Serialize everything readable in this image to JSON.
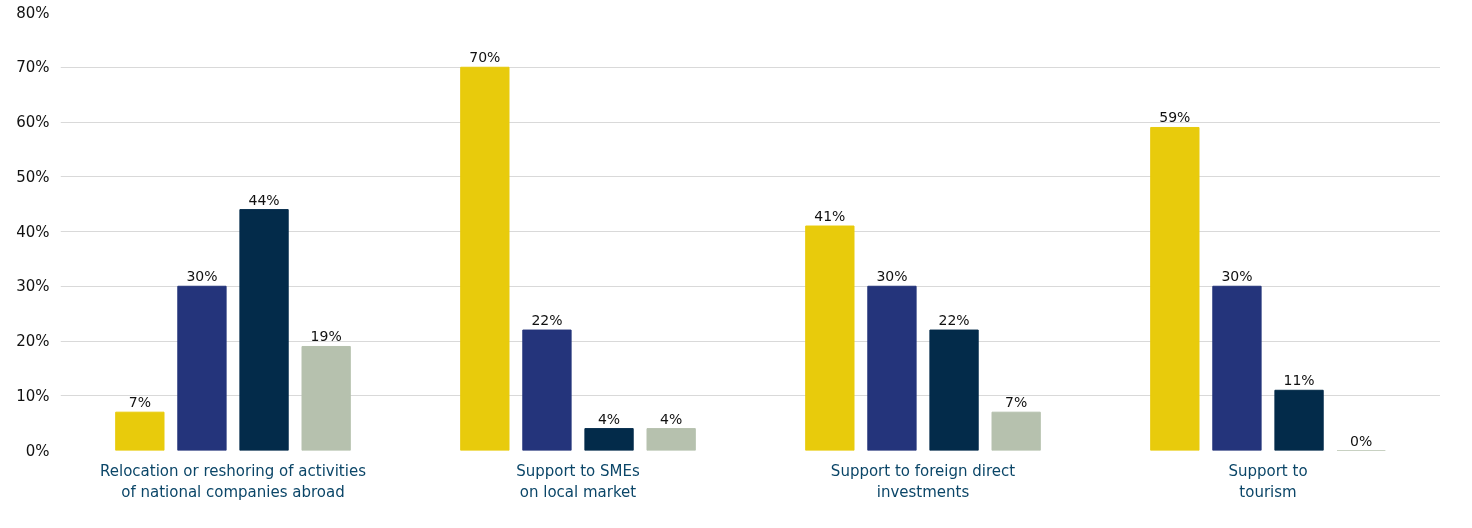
{
  "chart_data": {
    "type": "bar",
    "categories": [
      "Relocation or reshoring of activities\nof national companies abroad",
      "Support to SMEs\non local market",
      "Support to foreign direct\ninvestments",
      "Support to\ntourism"
    ],
    "series": [
      {
        "color": "#e8cb0c",
        "values": [
          7,
          70,
          41,
          59
        ],
        "value_labels": [
          "7%",
          "70%",
          "41%",
          "59%"
        ]
      },
      {
        "color": "#24347b",
        "values": [
          30,
          22,
          30,
          30
        ],
        "value_labels": [
          "30%",
          "22%",
          "30%",
          "30%"
        ]
      },
      {
        "color": "#032b4a",
        "values": [
          44,
          4,
          22,
          11
        ],
        "value_labels": [
          "44%",
          "4%",
          "22%",
          "11%"
        ]
      },
      {
        "color": "#b6c1ae",
        "values": [
          19,
          4,
          7,
          0
        ],
        "value_labels": [
          "19%",
          "4%",
          "7%",
          "0%"
        ]
      }
    ],
    "ylim": [
      0,
      80
    ],
    "yticks": [
      {
        "value": 0,
        "label": "0%"
      },
      {
        "value": 10,
        "label": "10%"
      },
      {
        "value": 20,
        "label": "20%"
      },
      {
        "value": 30,
        "label": "30%"
      },
      {
        "value": 40,
        "label": "40%"
      },
      {
        "value": 50,
        "label": "50%"
      },
      {
        "value": 60,
        "label": "60%"
      },
      {
        "value": 70,
        "label": "70%"
      },
      {
        "value": 80,
        "label": "80%"
      }
    ],
    "grid": "y"
  }
}
